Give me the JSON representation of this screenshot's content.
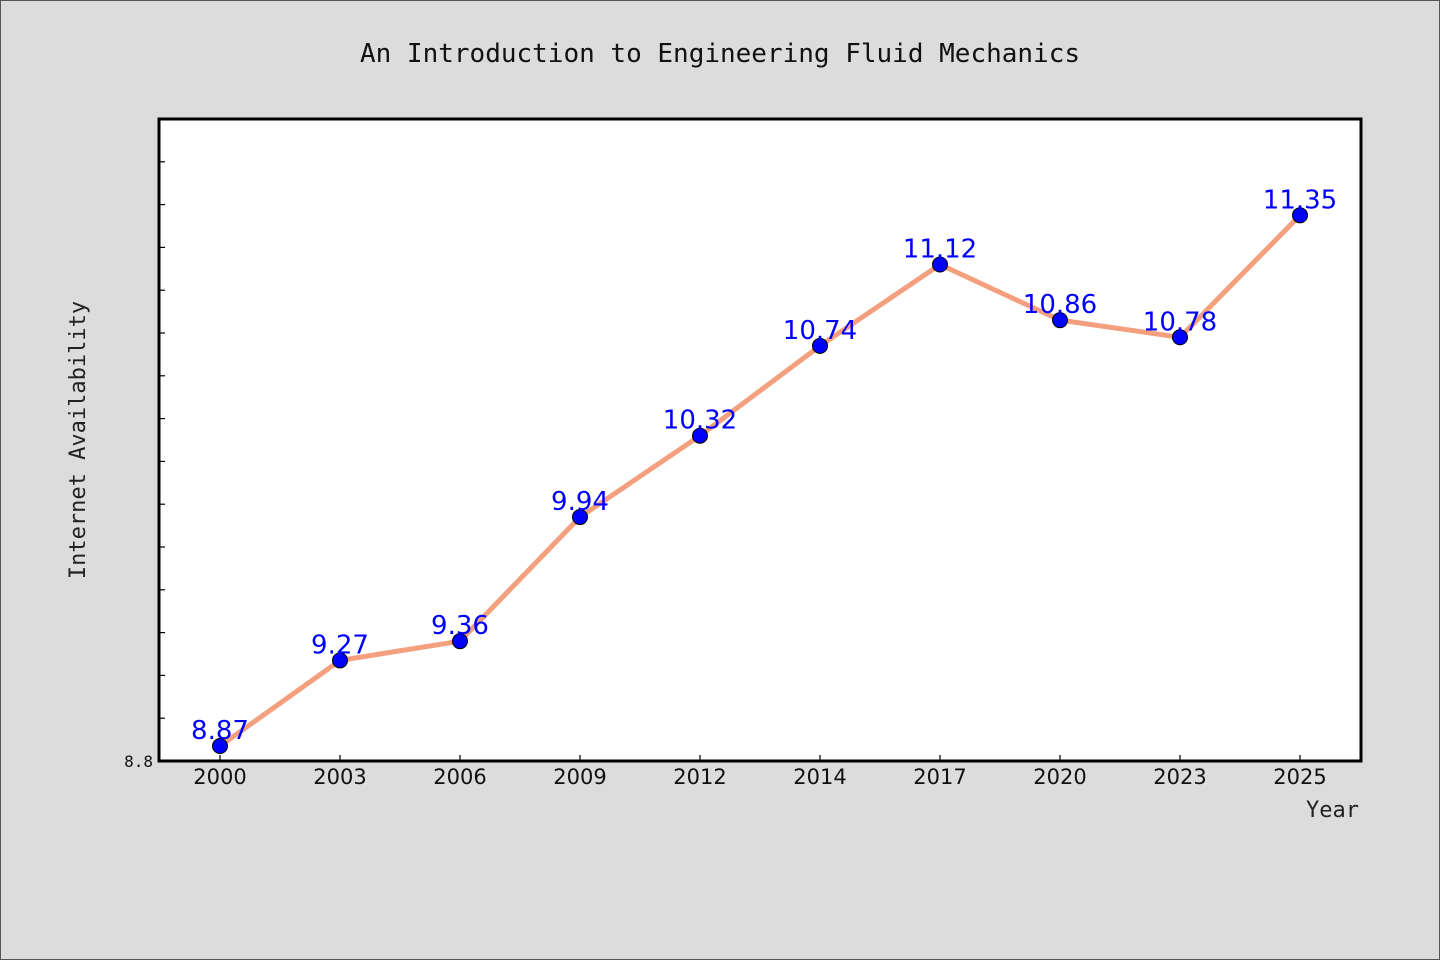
{
  "chart_data": {
    "type": "line",
    "title": "An Introduction to Engineering Fluid Mechanics",
    "xlabel": "Year",
    "ylabel": "Internet Availability",
    "categories": [
      "2000",
      "2003",
      "2006",
      "2009",
      "2012",
      "2014",
      "2017",
      "2020",
      "2023",
      "2025"
    ],
    "series": [
      {
        "values": [
          8.87,
          9.27,
          9.36,
          9.94,
          10.32,
          10.74,
          11.12,
          10.86,
          10.78,
          11.35
        ],
        "labels": [
          "8.87",
          "9.27",
          "9.36",
          "9.94",
          "10.32",
          "10.74",
          "11.12",
          "10.86",
          "10.78",
          "11.35"
        ]
      }
    ],
    "ylim": [
      8.8,
      11.8
    ],
    "ytick_labels": [
      "8.8"
    ],
    "grid": false,
    "colors": {
      "line": "#f4a07e",
      "marker": "#0000ff",
      "data_label": "#0000ff",
      "background": "#dcdcdc",
      "plot_area": "#ffffff"
    }
  }
}
